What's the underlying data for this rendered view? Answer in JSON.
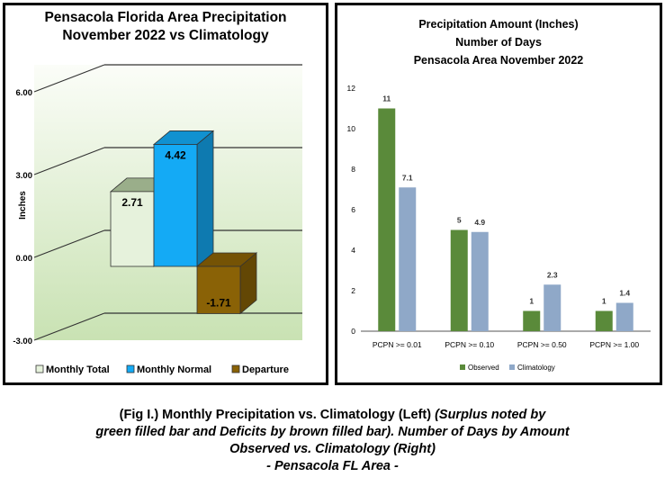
{
  "chart_data": [
    {
      "type": "bar",
      "title": "Pensacola Florida Area Precipitation",
      "subtitle": "November 2022 vs Climatology",
      "ylabel": "Inches",
      "ylim": [
        -3,
        6
      ],
      "yticks": [
        "6.00",
        "3.00",
        "0.00",
        "-3.00"
      ],
      "categories": [
        "Monthly Total",
        "Monthly Normal",
        "Departure"
      ],
      "values": [
        2.71,
        4.42,
        -1.71
      ],
      "value_labels": [
        "2.71",
        "4.42",
        "-1.71"
      ],
      "colors": [
        "#e6f2dc",
        "#14aaf5",
        "#8a6206"
      ],
      "grid": true,
      "legend": "bottom"
    },
    {
      "type": "bar",
      "title": "Precipitation Amount (Inches)",
      "subtitle": "Number of Days",
      "subtitle2": "Pensacola Area November 2022",
      "categories": [
        "PCPN >= 0.01",
        "PCPN >= 0.10",
        "PCPN >= 0.50",
        "PCPN >= 1.00"
      ],
      "series": [
        {
          "name": "Observed",
          "values": [
            11,
            5,
            1,
            1
          ],
          "labels": [
            "11",
            "5",
            "1",
            "1"
          ],
          "color": "#5a8a3a"
        },
        {
          "name": "Climatology",
          "values": [
            7.1,
            4.9,
            2.3,
            1.4
          ],
          "labels": [
            "7.1",
            "4.9",
            "2.3",
            "1.4"
          ],
          "color": "#8fa8c8"
        }
      ],
      "yticks": [
        "12",
        "10",
        "8",
        "6",
        "4",
        "2",
        "0"
      ],
      "ylim": [
        0,
        12
      ],
      "grid": false,
      "legend": "bottom"
    }
  ],
  "caption": {
    "line1_normal": "(Fig I.) Monthly Precipitation vs. Climatology (Left) ",
    "line1_italic": "(Surplus noted by",
    "line2": "green filled bar and Deficits by brown filled bar). Number of Days by Amount",
    "line3": "Observed vs. Climatology (Right)",
    "line4": "- Pensacola FL Area -"
  }
}
